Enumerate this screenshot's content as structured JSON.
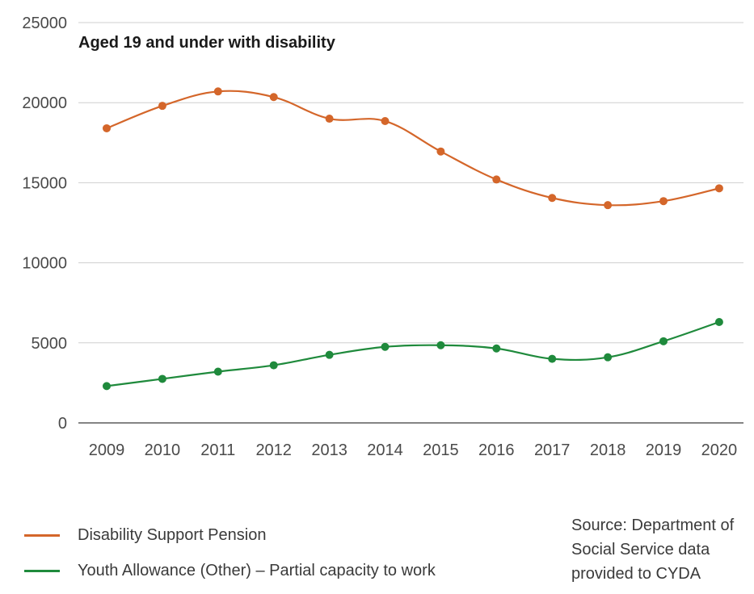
{
  "chart_data": {
    "type": "line",
    "title": "Aged 19 and under with disability",
    "categories": [
      "2009",
      "2010",
      "2011",
      "2012",
      "2013",
      "2014",
      "2015",
      "2016",
      "2017",
      "2018",
      "2019",
      "2020"
    ],
    "ylim": [
      0,
      25000
    ],
    "yticks": [
      0,
      5000,
      10000,
      15000,
      20000,
      25000
    ],
    "grid": true,
    "legend_position": "bottom-left",
    "series": [
      {
        "name": "Disability Support Pension",
        "color": "#d4662a",
        "values": [
          18400,
          19800,
          20700,
          20350,
          19000,
          18850,
          16950,
          15200,
          14050,
          13600,
          13850,
          14650
        ]
      },
      {
        "name": "Youth Allowance (Other) – Partial capacity to work",
        "color": "#1f8a3c",
        "values": [
          2300,
          2750,
          3200,
          3600,
          4250,
          4750,
          4850,
          4650,
          4000,
          4100,
          5100,
          6300
        ]
      }
    ]
  },
  "source_note": "Source: Department of Social Service data provided to CYDA"
}
